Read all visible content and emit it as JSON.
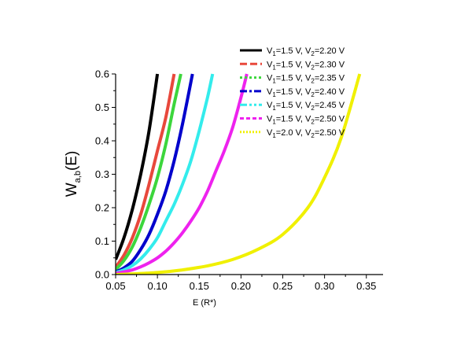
{
  "chart_data": {
    "type": "line",
    "title": "",
    "xlabel": "E (R*)",
    "ylabel": {
      "main": "W",
      "sub": "a,b",
      "suffix": "(E)"
    },
    "xlim": [
      0.05,
      0.37
    ],
    "ylim": [
      0.0,
      0.6
    ],
    "xticks": [
      "0.05",
      "0.10",
      "0.15",
      "0.20",
      "0.25",
      "0.30",
      "0.35"
    ],
    "yticks": [
      "0.0",
      "0.1",
      "0.2",
      "0.3",
      "0.4",
      "0.5",
      "0.6"
    ],
    "legend_position": "top-right",
    "grid": false,
    "series": [
      {
        "name": "V1=1.5 V, V2=2.20 V",
        "label": {
          "v1": "1.5 V",
          "v2": "2.20 V"
        },
        "color": "#000000",
        "dash": "solid",
        "x": [
          0.05,
          0.06,
          0.07,
          0.08,
          0.09,
          0.1
        ],
        "y": [
          0.045,
          0.11,
          0.195,
          0.3,
          0.43,
          0.6
        ]
      },
      {
        "name": "V1=1.5 V, V2=2.30 V",
        "label": {
          "v1": "1.5 V",
          "v2": "2.30 V"
        },
        "color": "#e8483c",
        "dash": "dash",
        "x": [
          0.05,
          0.06,
          0.07,
          0.08,
          0.09,
          0.1,
          0.11,
          0.12
        ],
        "y": [
          0.022,
          0.058,
          0.11,
          0.18,
          0.27,
          0.37,
          0.47,
          0.6
        ]
      },
      {
        "name": "V1=1.5 V, V2=2.35 V",
        "label": {
          "v1": "1.5 V",
          "v2": "2.35 V"
        },
        "color": "#3cd63c",
        "dash": "dot",
        "x": [
          0.05,
          0.06,
          0.07,
          0.08,
          0.09,
          0.1,
          0.11,
          0.12,
          0.128
        ],
        "y": [
          0.015,
          0.042,
          0.083,
          0.14,
          0.21,
          0.29,
          0.39,
          0.51,
          0.6
        ]
      },
      {
        "name": "V1=1.5 V, V2=2.40 V",
        "label": {
          "v1": "1.5 V",
          "v2": "2.40 V"
        },
        "color": "#0000cc",
        "dash": "dashdot",
        "x": [
          0.05,
          0.06,
          0.07,
          0.08,
          0.09,
          0.1,
          0.11,
          0.12,
          0.13,
          0.142
        ],
        "y": [
          0.008,
          0.02,
          0.04,
          0.075,
          0.12,
          0.18,
          0.25,
          0.34,
          0.45,
          0.6
        ]
      },
      {
        "name": "V1=1.5 V, V2=2.45 V",
        "label": {
          "v1": "1.5 V",
          "v2": "2.45 V"
        },
        "color": "#33ecec",
        "dash": "dashdotdot",
        "x": [
          0.05,
          0.06,
          0.07,
          0.08,
          0.09,
          0.1,
          0.11,
          0.12,
          0.13,
          0.14,
          0.15,
          0.16,
          0.166
        ],
        "y": [
          0.006,
          0.014,
          0.027,
          0.047,
          0.075,
          0.11,
          0.16,
          0.21,
          0.27,
          0.34,
          0.43,
          0.53,
          0.6
        ]
      },
      {
        "name": "V1=1.5 V, V2=2.50 V",
        "label": {
          "v1": "1.5 V",
          "v2": "2.50 V"
        },
        "color": "#ee22ee",
        "dash": "shortdash",
        "x": [
          0.05,
          0.06,
          0.07,
          0.08,
          0.09,
          0.1,
          0.11,
          0.12,
          0.13,
          0.14,
          0.15,
          0.16,
          0.17,
          0.18,
          0.19,
          0.2,
          0.207
        ],
        "y": [
          0.004,
          0.008,
          0.014,
          0.023,
          0.035,
          0.05,
          0.07,
          0.095,
          0.125,
          0.16,
          0.2,
          0.25,
          0.31,
          0.37,
          0.44,
          0.53,
          0.6
        ]
      },
      {
        "name": "V1=2.0 V, V2=2.50 V",
        "label": {
          "v1": "2.0 V",
          "v2": "2.50 V"
        },
        "color": "#f0f000",
        "dash": "shortdot",
        "x": [
          0.05,
          0.07,
          0.1,
          0.13,
          0.16,
          0.19,
          0.22,
          0.25,
          0.28,
          0.3,
          0.32,
          0.342
        ],
        "y": [
          0.0,
          0.002,
          0.006,
          0.014,
          0.026,
          0.045,
          0.075,
          0.12,
          0.2,
          0.29,
          0.41,
          0.6
        ]
      }
    ]
  }
}
